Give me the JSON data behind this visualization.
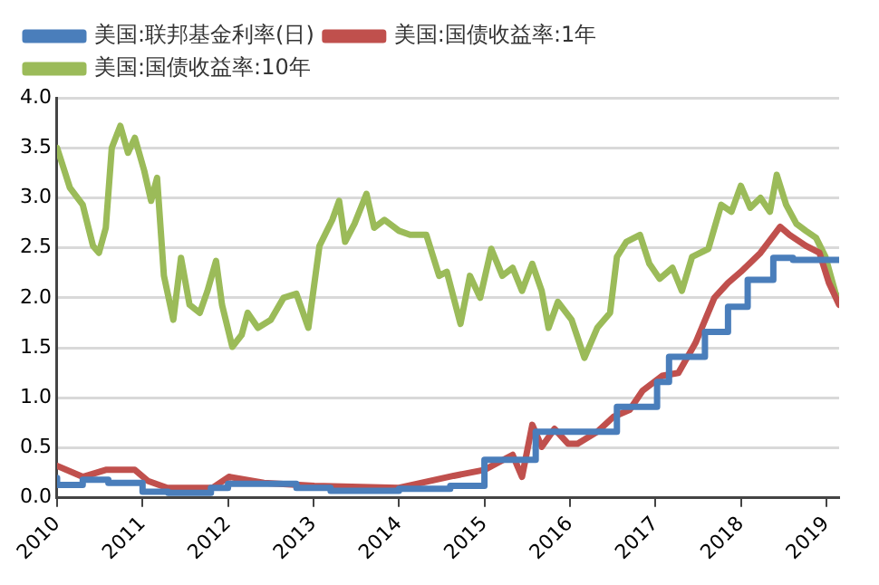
{
  "chart_data": {
    "type": "line",
    "xlim": [
      2010,
      2019.15
    ],
    "xticks": [
      2010,
      2011,
      2012,
      2013,
      2014,
      2015,
      2016,
      2017,
      2018,
      2019
    ],
    "ylim": [
      0,
      4
    ],
    "yticks": [
      {
        "value": 0,
        "label": "0.0"
      },
      0.5,
      {
        "value": 1,
        "label": "1.0"
      },
      1.5,
      {
        "value": 2,
        "label": "2.0"
      },
      2.5,
      {
        "value": 3,
        "label": "3.0"
      },
      3.5,
      {
        "value": 4,
        "label": "4.0"
      }
    ],
    "grid": "y",
    "legend": "top",
    "marker": "none",
    "line_style": "solid",
    "series": [
      {
        "name": "美国:联邦基金利率(日)",
        "type": "step",
        "color": "#4a7ebb",
        "x": [
          2010.0,
          2010.3,
          2010.6,
          2011.0,
          2011.3,
          2011.8,
          2012.0,
          2012.8,
          2013.2,
          2014.0,
          2014.6,
          2015.0,
          2015.6,
          2016.55,
          2017.02,
          2017.16,
          2017.58,
          2017.85,
          2018.08,
          2018.38,
          2018.61,
          2019.15
        ],
        "values": [
          0.2,
          0.13,
          0.18,
          0.15,
          0.06,
          0.05,
          0.1,
          0.14,
          0.1,
          0.07,
          0.09,
          0.12,
          0.38,
          0.66,
          0.91,
          1.16,
          1.41,
          1.66,
          1.91,
          2.18,
          2.4,
          2.38
        ]
      },
      {
        "name": "美国:国债收益率:1年",
        "color": "#c0504d",
        "x": [
          2010.0,
          2010.3,
          2010.57,
          2010.91,
          2011.06,
          2011.29,
          2011.82,
          2012.01,
          2012.42,
          2013.01,
          2014.0,
          2014.64,
          2015.0,
          2015.33,
          2015.44,
          2015.56,
          2015.67,
          2015.82,
          2015.98,
          2016.09,
          2016.32,
          2016.51,
          2016.7,
          2016.85,
          2017.08,
          2017.27,
          2017.47,
          2017.69,
          2017.85,
          2018.0,
          2018.23,
          2018.46,
          2018.57,
          2018.76,
          2018.92,
          2019.03,
          2019.15
        ],
        "values": [
          0.32,
          0.21,
          0.28,
          0.28,
          0.17,
          0.1,
          0.1,
          0.21,
          0.15,
          0.12,
          0.1,
          0.22,
          0.28,
          0.43,
          0.21,
          0.73,
          0.51,
          0.69,
          0.54,
          0.54,
          0.66,
          0.81,
          0.88,
          1.07,
          1.22,
          1.25,
          1.55,
          2.0,
          2.15,
          2.26,
          2.45,
          2.71,
          2.63,
          2.52,
          2.45,
          2.15,
          1.93
        ]
      },
      {
        "name": "美国:国债收益率:10年",
        "color": "#9bbb59",
        "x": [
          2010.0,
          2010.15,
          2010.3,
          2010.42,
          2010.49,
          2010.57,
          2010.64,
          2010.74,
          2010.83,
          2010.91,
          2011.02,
          2011.1,
          2011.17,
          2011.25,
          2011.36,
          2011.45,
          2011.55,
          2011.67,
          2011.76,
          2011.86,
          2011.93,
          2012.05,
          2012.16,
          2012.23,
          2012.35,
          2012.5,
          2012.65,
          2012.8,
          2012.94,
          2013.07,
          2013.22,
          2013.3,
          2013.37,
          2013.48,
          2013.62,
          2013.71,
          2013.83,
          2014.0,
          2014.13,
          2014.32,
          2014.47,
          2014.56,
          2014.72,
          2014.83,
          2014.95,
          2015.08,
          2015.21,
          2015.33,
          2015.44,
          2015.56,
          2015.67,
          2015.75,
          2015.86,
          2016.02,
          2016.17,
          2016.32,
          2016.47,
          2016.55,
          2016.66,
          2016.82,
          2016.93,
          2017.05,
          2017.2,
          2017.31,
          2017.43,
          2017.62,
          2017.77,
          2017.89,
          2018.0,
          2018.11,
          2018.23,
          2018.34,
          2018.42,
          2018.53,
          2018.65,
          2018.76,
          2018.88,
          2018.99,
          2019.11,
          2019.15
        ],
        "values": [
          3.5,
          3.1,
          2.93,
          2.52,
          2.45,
          2.7,
          3.5,
          3.72,
          3.45,
          3.6,
          3.27,
          2.97,
          3.2,
          2.22,
          1.78,
          2.4,
          1.93,
          1.85,
          2.07,
          2.37,
          1.93,
          1.51,
          1.63,
          1.85,
          1.7,
          1.78,
          2.0,
          2.04,
          1.7,
          2.52,
          2.78,
          2.97,
          2.56,
          2.74,
          3.04,
          2.7,
          2.78,
          2.67,
          2.63,
          2.63,
          2.22,
          2.26,
          1.74,
          2.22,
          2.0,
          2.49,
          2.22,
          2.3,
          2.07,
          2.34,
          2.07,
          1.7,
          1.96,
          1.78,
          1.4,
          1.7,
          1.85,
          2.41,
          2.56,
          2.63,
          2.34,
          2.19,
          2.3,
          2.07,
          2.41,
          2.49,
          2.93,
          2.86,
          3.12,
          2.9,
          3.0,
          2.86,
          3.23,
          2.93,
          2.74,
          2.67,
          2.6,
          2.41,
          2.04,
          2.0
        ]
      }
    ]
  }
}
